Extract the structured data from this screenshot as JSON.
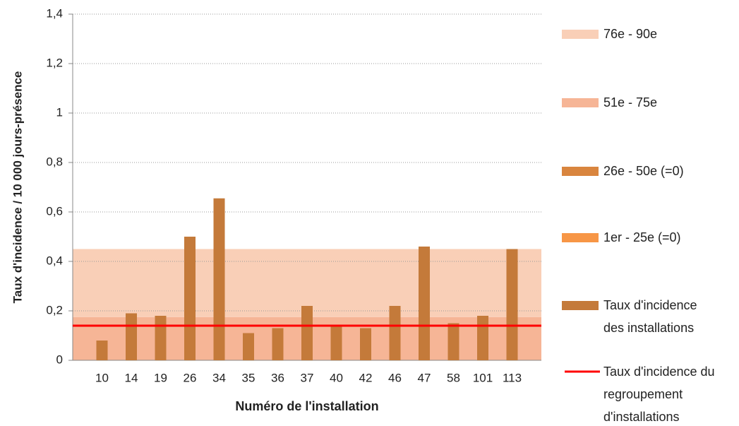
{
  "chart_data": {
    "type": "bar",
    "y_label": "Taux d'incidence  / 10 000 jours-présence",
    "x_label": "Numéro de l'installation",
    "categories": [
      "10",
      "14",
      "19",
      "26",
      "34",
      "35",
      "36",
      "37",
      "40",
      "42",
      "46",
      "47",
      "58",
      "101",
      "113"
    ],
    "ylim": [
      0,
      1.4
    ],
    "yticks": [
      0,
      {
        "value": 0.2,
        "label": "0,2"
      },
      {
        "value": 0.4,
        "label": "0,4"
      },
      {
        "value": 0.6,
        "label": "0,6"
      },
      {
        "value": 0.8,
        "label": "0,8"
      },
      1,
      {
        "value": 1.2,
        "label": "1,2"
      },
      {
        "value": 1.4,
        "label": "1,4"
      }
    ],
    "grid": true,
    "bands": [
      {
        "name": "76e - 90e",
        "color": "#f9cfb7",
        "value": 0.275
      },
      {
        "name": "51e - 75e",
        "color": "#f6b596",
        "value": 0.175
      },
      {
        "name": "26e - 50e (=0)",
        "color": "#d9853e",
        "value": 0
      },
      {
        "name": "1er - 25e (=0)",
        "color": "#f79646",
        "value": 0
      }
    ],
    "series": [
      {
        "name": "Taux d'incidence des installations",
        "color": "#c47a3a",
        "values": [
          0.08,
          0.19,
          0.18,
          0.5,
          0.655,
          0.11,
          0.13,
          0.22,
          0.14,
          0.13,
          0.22,
          0.46,
          0.15,
          0.18,
          0.45
        ]
      },
      {
        "name": "Taux d'incidence du regroupement d'installations",
        "color": "#ff0000",
        "value": 0.14
      }
    ]
  }
}
